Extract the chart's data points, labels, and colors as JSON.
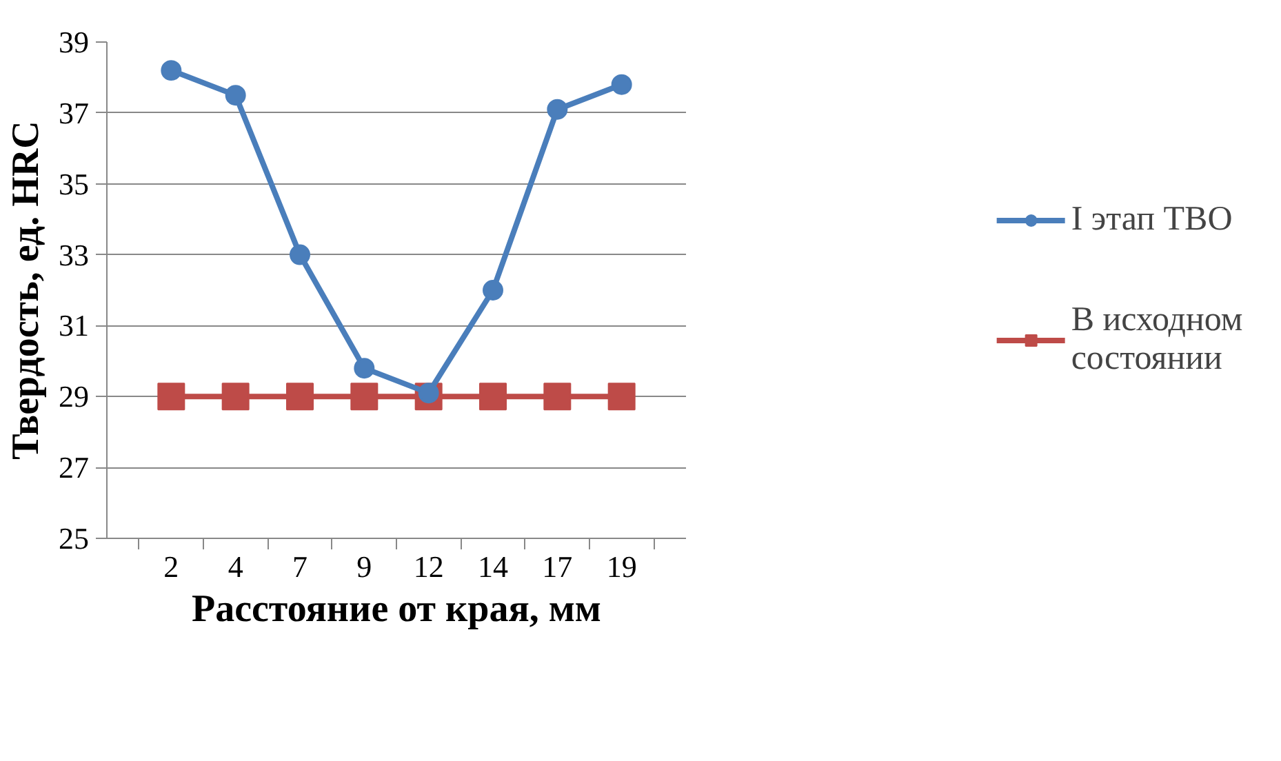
{
  "chart_data": {
    "type": "line",
    "xlabel": "Расстояние от края, мм",
    "ylabel": "Твердость, ед. HRC",
    "categories": [
      "2",
      "4",
      "7",
      "9",
      "12",
      "14",
      "17",
      "19"
    ],
    "series": [
      {
        "name": "I этап ТВО",
        "color": "#4a7ebb",
        "marker": "circle",
        "values": [
          38.2,
          37.5,
          33.0,
          29.8,
          29.1,
          32.0,
          37.1,
          37.8
        ]
      },
      {
        "name": "В исходном состоянии",
        "color": "#be4b48",
        "marker": "square",
        "values": [
          29,
          29,
          29,
          29,
          29,
          29,
          29,
          29
        ]
      }
    ],
    "ylim": [
      25,
      39
    ],
    "yticks": [
      25,
      27,
      29,
      31,
      33,
      35,
      37,
      39
    ],
    "grid": "y",
    "legend": "right"
  }
}
